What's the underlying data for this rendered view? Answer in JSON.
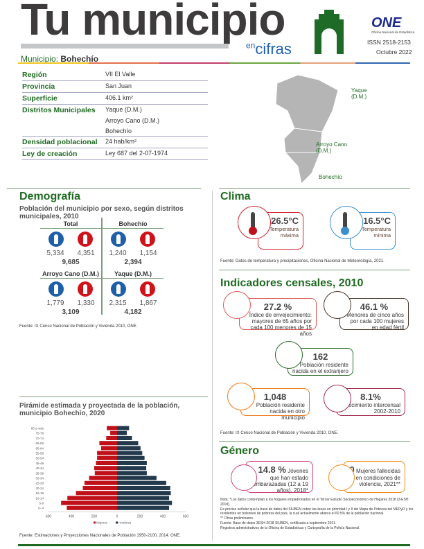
{
  "header": {
    "title": "Tu municipio",
    "en": "en",
    "cifras": "cifras",
    "municipio_label": "Municipio:",
    "municipio": "Bohechío",
    "logo": "ONE",
    "logo_sub": "Oficina Nacional de Estadística",
    "issn": "ISSN 2518-2153",
    "date": "Octubre 2022"
  },
  "info": [
    {
      "k": "Región",
      "v": [
        "VII El Valle"
      ]
    },
    {
      "k": "Provincia",
      "v": [
        "San Juan"
      ]
    },
    {
      "k": "Superficie",
      "v": [
        "406.1 km²"
      ]
    },
    {
      "k": "Distritos Municipales",
      "v": [
        "Yaque (D.M.)",
        "Arroyo Cano (D.M.)",
        "Bohechío"
      ]
    },
    {
      "k": "Densidad poblacional",
      "v": [
        "24 hab/km²"
      ]
    },
    {
      "k": "Ley de creación",
      "v": [
        "Ley 687 del 2-07-1974"
      ]
    }
  ],
  "map": {
    "labels": [
      "Yaque (D.M.)",
      "Arroyo Cano (D.M.)",
      "Bohechío"
    ]
  },
  "demografia": {
    "title": "Demografía",
    "subtitle": "Población del municipio por sexo, según distritos municipales, 2010",
    "cells": [
      {
        "h": "Total",
        "m": "5,334",
        "f": "4,351",
        "t": "9,685"
      },
      {
        "h": "Bohechío",
        "m": "1,240",
        "f": "1,154",
        "t": "2,394"
      },
      {
        "h": "Arroyo Cano (D.M.)",
        "m": "1,779",
        "f": "1,330",
        "t": "3,109"
      },
      {
        "h": "Yaque (D.M.)",
        "m": "2,315",
        "f": "1,867",
        "t": "4,182"
      }
    ],
    "source": "Fuente: IX Censo Nacional de Población y Vivienda 2010, ONE."
  },
  "clima": {
    "title": "Clima",
    "max": "26.5°C",
    "max_label": "Temperatura máxima",
    "min": "16.5°C",
    "min_label": "Temperatura mínima",
    "source": "Fuente: Datos de temperatura y precipitaciones, Oficina Nacional de Meteorología, 2021.",
    "colors": {
      "max": "#d0202e",
      "min": "#3a8fd0"
    }
  },
  "censales": {
    "title": "Indicadores censales, 2010",
    "env": {
      "v": "27.2 %",
      "l": "Índice de envejecimiento: mayores de 65 años por cada 100 menores de 15 años"
    },
    "men": {
      "v": "46.1 %",
      "l": "Menores de cinco años por cada 100 mujeres en edad fértil"
    },
    "ext": {
      "v": "162",
      "l": "Población residente nacida en el extranjero"
    },
    "otro": {
      "v": "1,048",
      "l": "Población residente nacida en otro municipio"
    },
    "crec": {
      "v": "8.1%",
      "l": "Crecimiento intercensal 2002-2010"
    },
    "source": "Fuente: IX Censo Nacional de Población y Vivienda 2010, ONE."
  },
  "genero": {
    "title": "Género",
    "emb_v": "14.8 %",
    "emb_l": "Jóvenes que han estado embarazadas (12 a 19 años), 2018*",
    "muj_v": "0",
    "muj_l": "Mujeres fallecidas en condiciones de violencia, 2021**",
    "notes": [
      "Nota: *Los datos contemplan a los hogares empadronados en el Tercer Estudio Socioeconómico de Hogares 2018 (3-ESH 2018).",
      "Es preciso señalar que la base de datos del SIUBEN cubre las áreas en prioridad I y II del Mapa de Pobreza del MEPyD y los residentes en bolsones de pobreza del país, la cual actualmente abarca el 60.5% de la población nacional.",
      "** Cifras preliminares.",
      "Fuente: Base de datos 3ESH-2018 SIUBEN, certificada a septiembre 2021.",
      "Registros administrativos de la Oficina de Estadísticas y Cartografía de la Policía Nacional."
    ]
  },
  "chart_data": {
    "type": "bar",
    "orientation": "horizontal-pyramid",
    "title": "Pirámide estimada y proyectada de la población, municipio Bohechío, 2020",
    "categories": [
      "80 y más",
      "75-79",
      "70-74",
      "65-69",
      "60-64",
      "55-59",
      "50-54",
      "45-49",
      "40-44",
      "35-39",
      "30-34",
      "25-29",
      "20-24",
      "15-19",
      "10-14",
      "5-9",
      "0- 4"
    ],
    "series": [
      {
        "name": "Mujeres",
        "color": "#c0101a",
        "values": [
          90,
          60,
          95,
          155,
          140,
          175,
          175,
          185,
          200,
          195,
          245,
          285,
          300,
          360,
          435,
          490,
          440
        ]
      },
      {
        "name": "Hombres",
        "color": "#233a4d",
        "values": [
          105,
          85,
          130,
          185,
          205,
          220,
          240,
          260,
          255,
          260,
          345,
          430,
          465,
          470,
          455,
          480,
          455
        ]
      }
    ],
    "xticks": [
      "600",
      "400",
      "200",
      "0",
      "200",
      "400",
      "600"
    ],
    "xlim": [
      -600,
      600
    ],
    "legend": "bottom",
    "source": "Fuente: Estimaciones y Proyecciones Nacionales de Población 1950-2100, 2014. ONE."
  }
}
